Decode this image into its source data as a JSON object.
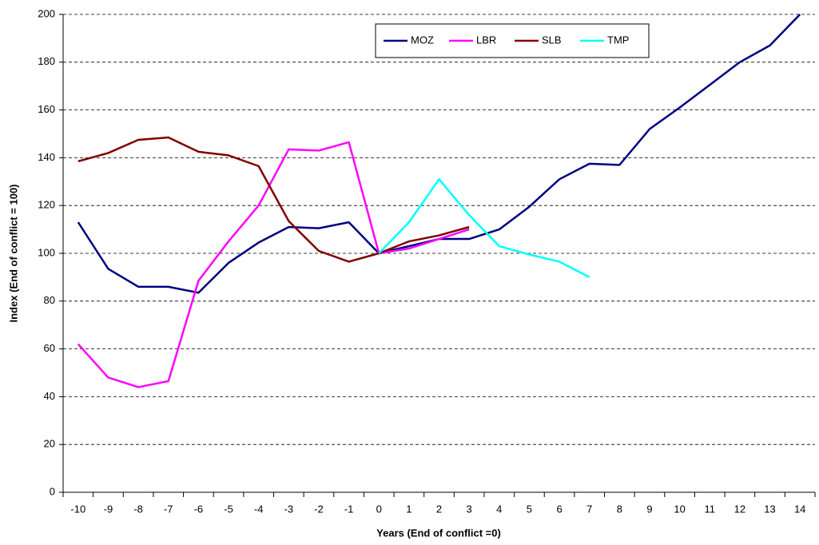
{
  "chart_data": {
    "type": "line",
    "x_label": "Years (End of conflict =0)",
    "y_label": "Index (End of conflict = 100)",
    "categories": [
      "-10",
      "-9",
      "-8",
      "-7",
      "-6",
      "-5",
      "-4",
      "-3",
      "-2",
      "-1",
      "0",
      "1",
      "2",
      "3",
      "4",
      "5",
      "6",
      "7",
      "8",
      "9",
      "10",
      "11",
      "12",
      "13",
      "14"
    ],
    "series": [
      {
        "name": "MOZ",
        "color": "#000080",
        "values": [
          113,
          93.5,
          86,
          86,
          83.5,
          96,
          104.5,
          111,
          110.5,
          113,
          100,
          103,
          106,
          106,
          110,
          119.5,
          131,
          137.5,
          137,
          152,
          161,
          170.5,
          180,
          187,
          200
        ]
      },
      {
        "name": "LBR",
        "color": "#ff00ff",
        "values": [
          62,
          48,
          44,
          46.5,
          88.5,
          105,
          120,
          143.5,
          143,
          146.5,
          100,
          102,
          106,
          110,
          null,
          null,
          null,
          null,
          null,
          null,
          null,
          null,
          null,
          null,
          null
        ]
      },
      {
        "name": "SLB",
        "color": "#800000",
        "values": [
          138.5,
          142,
          147.5,
          148.5,
          142.5,
          141,
          136.5,
          113.5,
          101,
          96.5,
          100,
          105,
          107.5,
          111,
          null,
          null,
          null,
          null,
          null,
          null,
          null,
          null,
          null,
          null,
          null
        ]
      },
      {
        "name": "TMP",
        "color": "#00ffff",
        "values": [
          null,
          null,
          null,
          null,
          null,
          null,
          null,
          null,
          null,
          null,
          100,
          113,
          131,
          116,
          103,
          99.5,
          96.5,
          90,
          null,
          null,
          null,
          null,
          null,
          null,
          null
        ]
      }
    ],
    "ylim": [
      0,
      200
    ],
    "yticks": [
      0,
      20,
      40,
      60,
      80,
      100,
      120,
      140,
      160,
      180,
      200
    ],
    "grid": true,
    "legend": "top"
  }
}
